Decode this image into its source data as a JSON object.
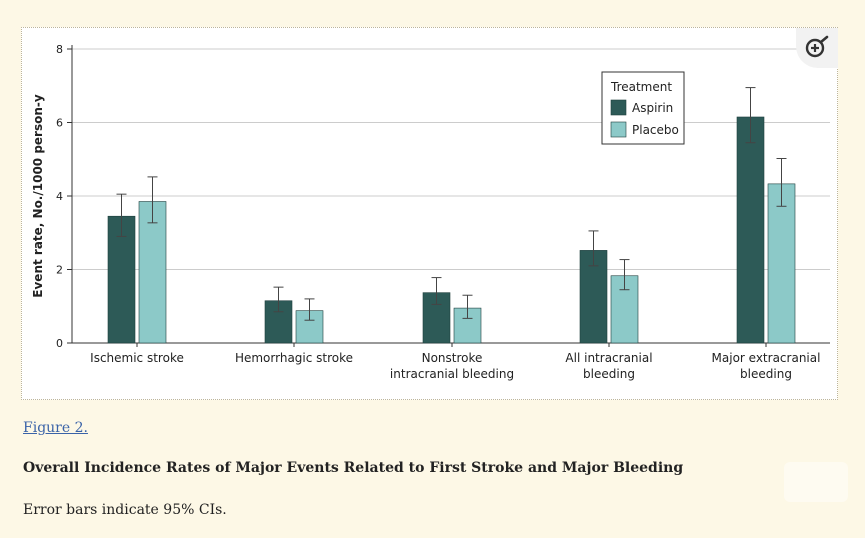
{
  "figure": {
    "link_text": "Figure 2.",
    "title": "Overall Incidence Rates of Major Events Related to First Stroke and Major Bleeding",
    "caption": "Error bars indicate 95% CIs."
  },
  "zoom_icon": "zoom-in-icon",
  "colors": {
    "aspirin": "#2d5a57",
    "placebo": "#8cc9c8",
    "axis": "#333333",
    "grid": "#cccccc",
    "link": "#3a63a8",
    "background": "#fdf8e6"
  },
  "chart_data": {
    "type": "bar",
    "categories": [
      [
        "Ischemic stroke"
      ],
      [
        "Hemorrhagic stroke"
      ],
      [
        "Nonstroke",
        "intracranial bleeding"
      ],
      [
        "All intracranial",
        "bleeding"
      ],
      [
        "Major extracranial",
        "bleeding"
      ]
    ],
    "series": [
      {
        "name": "Aspirin",
        "values": [
          3.45,
          1.15,
          1.37,
          2.52,
          6.15
        ],
        "ci_low": [
          2.9,
          0.85,
          1.05,
          2.1,
          5.45
        ],
        "ci_high": [
          4.05,
          1.52,
          1.78,
          3.05,
          6.95
        ]
      },
      {
        "name": "Placebo",
        "values": [
          3.85,
          0.88,
          0.95,
          1.83,
          4.33
        ],
        "ci_low": [
          3.27,
          0.62,
          0.67,
          1.45,
          3.72
        ],
        "ci_high": [
          4.52,
          1.2,
          1.3,
          2.27,
          5.02
        ]
      }
    ],
    "ylabel": "Event rate, No./1000 person-y",
    "ylim": [
      0,
      8
    ],
    "yticks": [
      0,
      2,
      4,
      6,
      8
    ],
    "grid": true,
    "legend": {
      "title": "Treatment",
      "position": "top-right"
    },
    "error_bars": "95% CI"
  }
}
